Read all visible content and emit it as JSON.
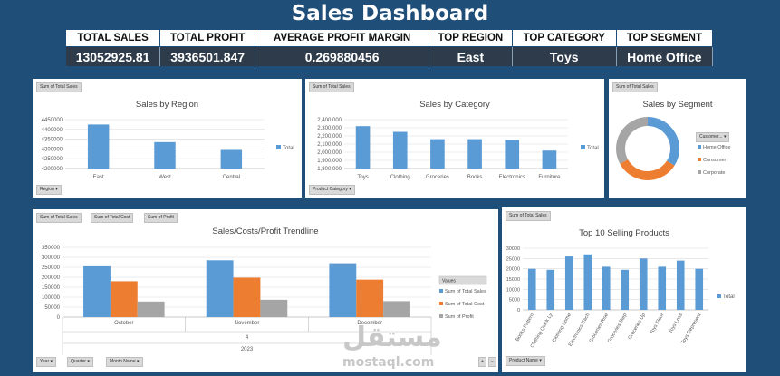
{
  "dashboard_title": "Sales Dashboard",
  "kpis": [
    {
      "label": "TOTAL SALES",
      "value": "13052925.81"
    },
    {
      "label": "TOTAL PROFIT",
      "value": "3936501.847"
    },
    {
      "label": "AVERAGE PROFIT MARGIN",
      "value": "0.269880456"
    },
    {
      "label": "TOP REGION",
      "value": "East"
    },
    {
      "label": "TOP CATEGORY",
      "value": "Toys"
    },
    {
      "label": "TOP SEGMENT",
      "value": "Home Office"
    }
  ],
  "colors": {
    "blue": "#5b9bd5",
    "orange": "#ed7d31",
    "gray": "#a5a5a5"
  },
  "region": {
    "field_button": "Sum of Total Sales",
    "filter": "Region"
  },
  "category": {
    "field_button": "Sum of Total Sales",
    "filter": "Product Category"
  },
  "segment": {
    "field_button": "Sum of Total Sales",
    "legend_title": "Customer..."
  },
  "trend": {
    "field_buttons": [
      "Sum of Total Sales",
      "Sum of Total Cost",
      "Sum of Profit"
    ],
    "legend_title": "Values",
    "quarter_label": "4",
    "year_label": "2023",
    "filters": [
      "Year",
      "Quarter",
      "Month Name"
    ]
  },
  "top10": {
    "field_button": "Sum of Total Sales",
    "filter": "Product Name"
  },
  "watermark": {
    "arabic": "مستقل",
    "latin": "mostaql.com"
  },
  "chart_data": [
    {
      "type": "bar",
      "title": "Sales by Region",
      "categories": [
        "East",
        "West",
        "Central"
      ],
      "series": [
        {
          "name": "Total",
          "values": [
            4425000,
            4335000,
            4295000
          ]
        }
      ],
      "ylim": [
        4200000,
        4450000
      ],
      "yticks": [
        "4200000",
        "4250000",
        "4300000",
        "4350000",
        "4400000",
        "4450000"
      ],
      "grid": true,
      "legend": "right"
    },
    {
      "type": "bar",
      "title": "Sales by Category",
      "categories": [
        "Toys",
        "Clothing",
        "Groceries",
        "Books",
        "Electronics",
        "Furniture"
      ],
      "series": [
        {
          "name": "Total",
          "values": [
            2320000,
            2250000,
            2160000,
            2160000,
            2150000,
            2020000
          ]
        }
      ],
      "ylim": [
        1800000,
        2400000
      ],
      "yticks": [
        "1,800,000",
        "1,900,000",
        "2,000,000",
        "2,100,000",
        "2,200,000",
        "2,300,000",
        "2,400,000"
      ],
      "grid": true,
      "legend": "right"
    },
    {
      "type": "pie",
      "title": "Sales by Segment",
      "categories": [
        "Home Office",
        "Consumer",
        "Corporate"
      ],
      "values": [
        34,
        33,
        33
      ],
      "legend": "right"
    },
    {
      "type": "bar",
      "title": "Sales/Costs/Profit Trendline",
      "categories": [
        "October",
        "November",
        "December"
      ],
      "series": [
        {
          "name": "Sum of Total Sales",
          "values": [
            255000,
            285000,
            270000
          ]
        },
        {
          "name": "Sum of Total Cost",
          "values": [
            180000,
            198000,
            188000
          ]
        },
        {
          "name": "Sum of Profit",
          "values": [
            78000,
            87000,
            80000
          ]
        }
      ],
      "ylim": [
        0,
        350000
      ],
      "yticks": [
        "0",
        "50000",
        "100000",
        "150000",
        "200000",
        "250000",
        "300000",
        "350000"
      ],
      "grid": true,
      "legend": "right"
    },
    {
      "type": "bar",
      "title": "Top 10 Selling Products",
      "categories": [
        "Books Pattern",
        "Clothing Quick Ly",
        "Clothing Some",
        "Electronics Each",
        "Groceries Rise",
        "Groceries Step",
        "Groceries Up",
        "Toys Floor",
        "Toys Loss",
        "Toys Represent"
      ],
      "series": [
        {
          "name": "Total",
          "values": [
            20000,
            19500,
            26000,
            27000,
            21000,
            19500,
            25000,
            21000,
            24000,
            20000
          ]
        }
      ],
      "ylim": [
        0,
        30000
      ],
      "yticks": [
        "0",
        "5000",
        "10000",
        "15000",
        "20000",
        "25000",
        "30000"
      ],
      "grid": true,
      "legend": "right"
    }
  ]
}
